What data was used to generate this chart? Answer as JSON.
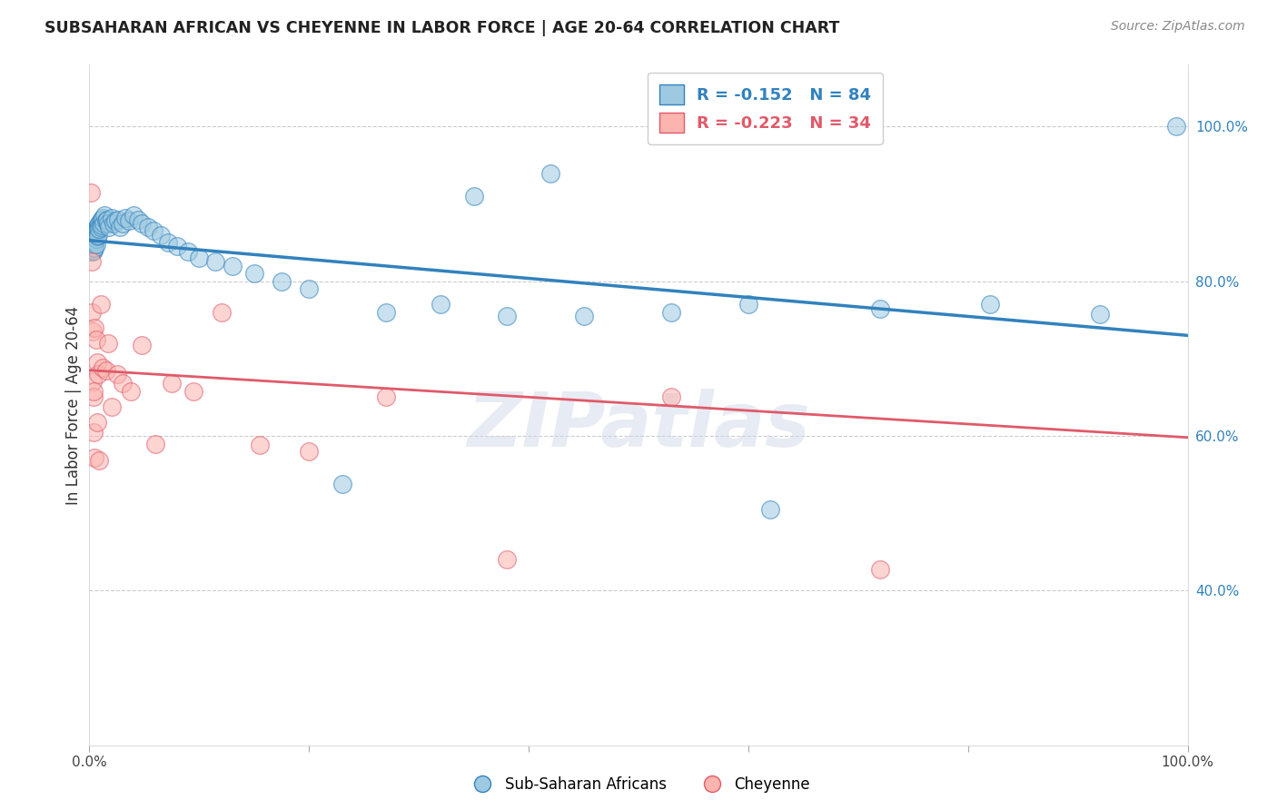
{
  "title": "SUBSAHARAN AFRICAN VS CHEYENNE IN LABOR FORCE | AGE 20-64 CORRELATION CHART",
  "source": "Source: ZipAtlas.com",
  "ylabel": "In Labor Force | Age 20-64",
  "ylabel_right_ticks": [
    "100.0%",
    "80.0%",
    "60.0%",
    "40.0%"
  ],
  "ylabel_right_vals": [
    1.0,
    0.8,
    0.6,
    0.4
  ],
  "legend_blue_r": "-0.152",
  "legend_blue_n": "84",
  "legend_pink_r": "-0.223",
  "legend_pink_n": "34",
  "blue_color": "#9ecae1",
  "pink_color": "#fbb4ae",
  "blue_line_color": "#3182bd",
  "pink_line_color": "#e05a6a",
  "watermark": "ZIPatlas",
  "ylim_min": 0.2,
  "ylim_max": 1.08,
  "xlim_min": 0.0,
  "xlim_max": 1.0,
  "blue_scatter_x": [
    0.001,
    0.001,
    0.001,
    0.002,
    0.002,
    0.002,
    0.002,
    0.002,
    0.003,
    0.003,
    0.003,
    0.003,
    0.003,
    0.004,
    0.004,
    0.004,
    0.004,
    0.004,
    0.005,
    0.005,
    0.005,
    0.005,
    0.005,
    0.005,
    0.006,
    0.006,
    0.006,
    0.006,
    0.007,
    0.007,
    0.007,
    0.008,
    0.008,
    0.008,
    0.009,
    0.009,
    0.01,
    0.01,
    0.011,
    0.011,
    0.012,
    0.013,
    0.014,
    0.015,
    0.016,
    0.017,
    0.018,
    0.02,
    0.022,
    0.024,
    0.026,
    0.028,
    0.03,
    0.033,
    0.036,
    0.04,
    0.044,
    0.048,
    0.053,
    0.058,
    0.065,
    0.072,
    0.08,
    0.09,
    0.1,
    0.115,
    0.13,
    0.15,
    0.175,
    0.2,
    0.23,
    0.27,
    0.32,
    0.38,
    0.45,
    0.53,
    0.62,
    0.72,
    0.82,
    0.92,
    0.35,
    0.42,
    0.6,
    0.99
  ],
  "blue_scatter_y": [
    0.855,
    0.845,
    0.84,
    0.858,
    0.85,
    0.845,
    0.842,
    0.838,
    0.86,
    0.855,
    0.848,
    0.843,
    0.838,
    0.862,
    0.858,
    0.853,
    0.848,
    0.84,
    0.865,
    0.86,
    0.855,
    0.852,
    0.848,
    0.843,
    0.868,
    0.862,
    0.855,
    0.848,
    0.87,
    0.865,
    0.858,
    0.873,
    0.868,
    0.86,
    0.875,
    0.868,
    0.878,
    0.87,
    0.88,
    0.872,
    0.882,
    0.875,
    0.885,
    0.878,
    0.88,
    0.875,
    0.87,
    0.882,
    0.875,
    0.878,
    0.88,
    0.87,
    0.875,
    0.882,
    0.878,
    0.885,
    0.88,
    0.875,
    0.87,
    0.865,
    0.86,
    0.85,
    0.845,
    0.838,
    0.83,
    0.825,
    0.82,
    0.81,
    0.8,
    0.79,
    0.538,
    0.76,
    0.77,
    0.755,
    0.755,
    0.76,
    0.505,
    0.765,
    0.77,
    0.758,
    0.91,
    0.94,
    0.77,
    1.0
  ],
  "pink_scatter_x": [
    0.001,
    0.002,
    0.002,
    0.003,
    0.003,
    0.004,
    0.004,
    0.004,
    0.005,
    0.005,
    0.006,
    0.007,
    0.007,
    0.008,
    0.009,
    0.01,
    0.012,
    0.015,
    0.017,
    0.02,
    0.025,
    0.03,
    0.038,
    0.048,
    0.06,
    0.075,
    0.095,
    0.12,
    0.155,
    0.2,
    0.27,
    0.38,
    0.53,
    0.72
  ],
  "pink_scatter_y": [
    0.915,
    0.825,
    0.76,
    0.735,
    0.67,
    0.65,
    0.605,
    0.658,
    0.74,
    0.572,
    0.725,
    0.695,
    0.618,
    0.68,
    0.568,
    0.77,
    0.688,
    0.685,
    0.72,
    0.638,
    0.68,
    0.668,
    0.658,
    0.718,
    0.59,
    0.668,
    0.658,
    0.76,
    0.588,
    0.58,
    0.65,
    0.44,
    0.65,
    0.428
  ]
}
